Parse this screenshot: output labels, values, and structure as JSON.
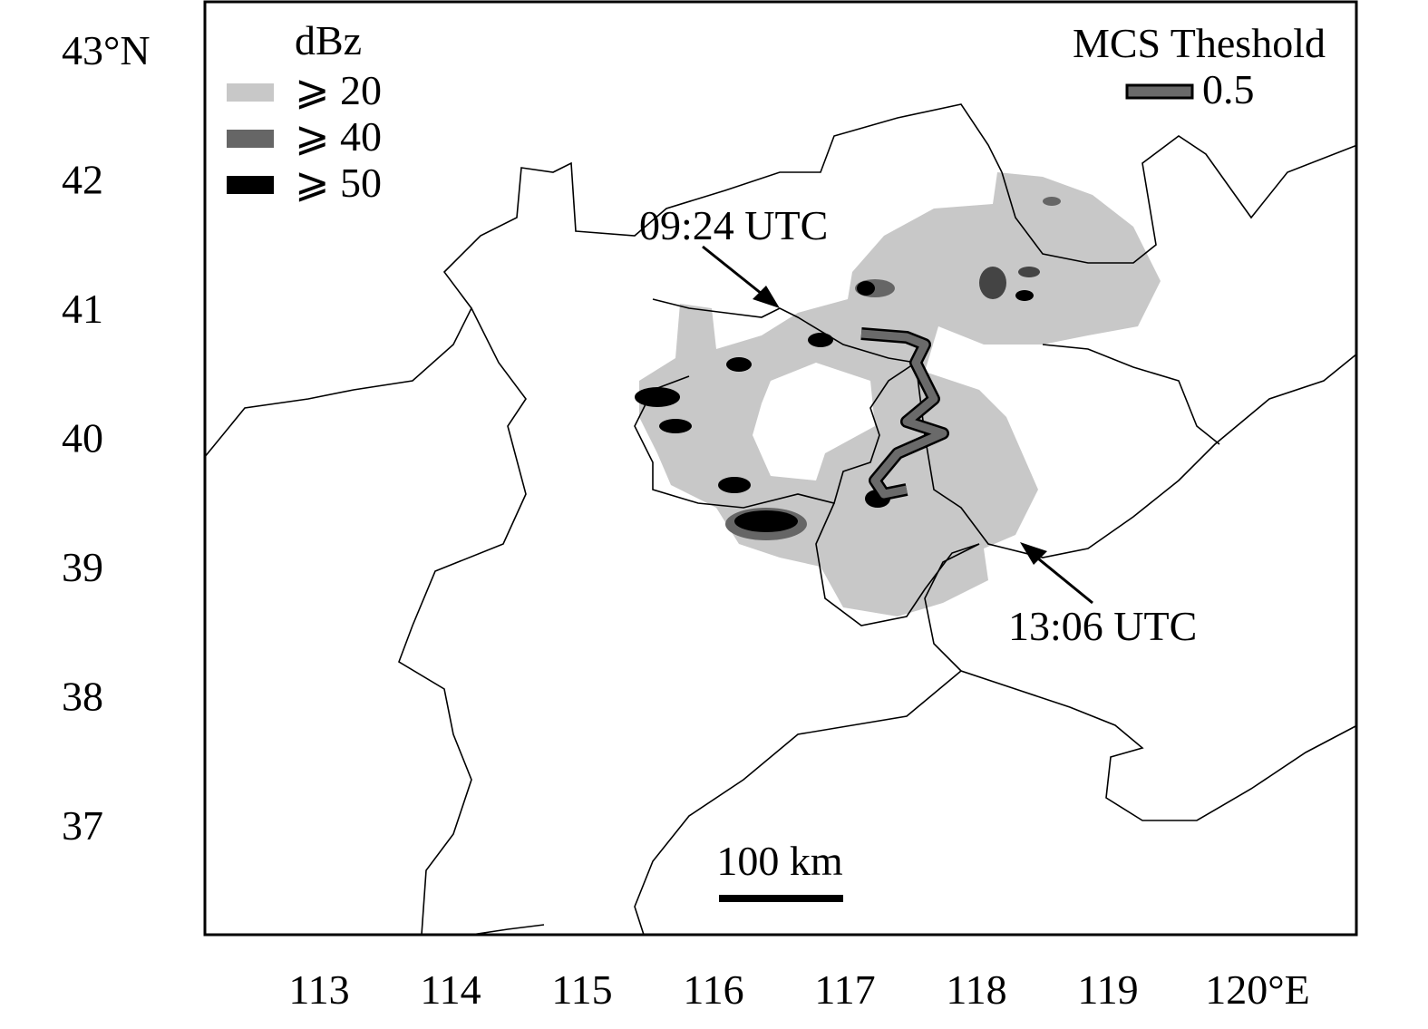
{
  "map": {
    "lat_labels": [
      "43°N",
      "42",
      "41",
      "40",
      "39",
      "38",
      "37"
    ],
    "lon_labels": [
      "113",
      "114",
      "115",
      "116",
      "117",
      "118",
      "119",
      "120°E"
    ],
    "legend": {
      "title": "dBz",
      "items": [
        "⩾ 20",
        "⩾ 40",
        "⩾ 50"
      ]
    },
    "threshold_legend": {
      "title": "MCS Theshold",
      "item": "0.5"
    },
    "annotations": [
      "09:24 UTC",
      "13:06 UTC"
    ],
    "scale_bar": "100 km"
  }
}
